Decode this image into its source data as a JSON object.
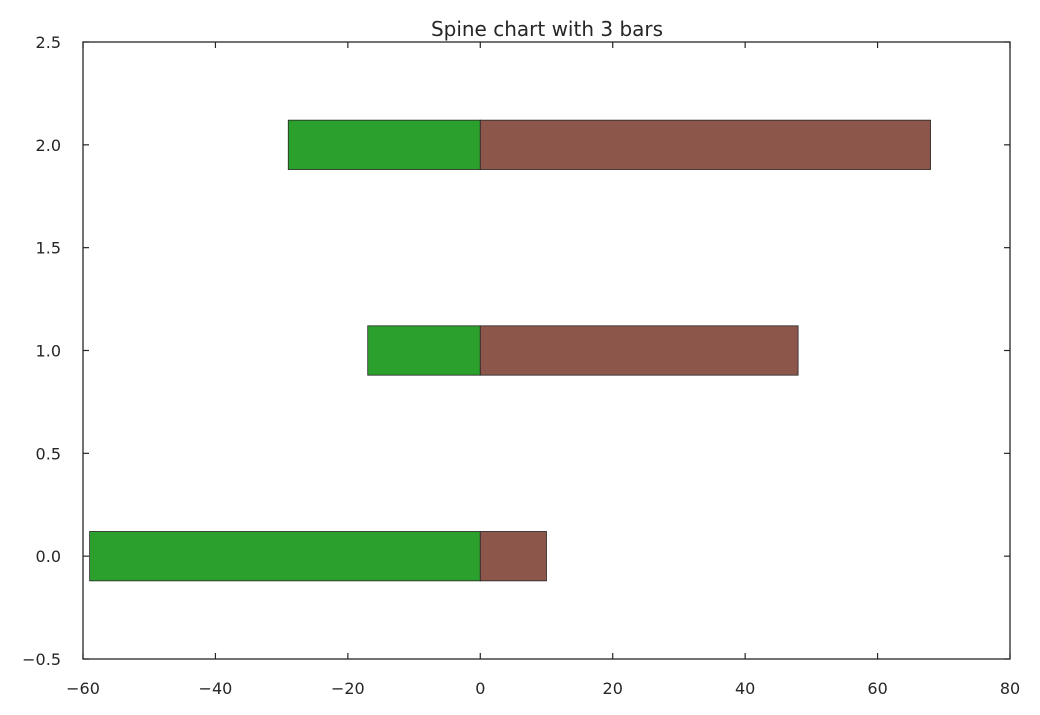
{
  "chart_data": {
    "type": "bar",
    "orientation": "horizontal",
    "title": "Spine chart with 3 bars",
    "xlabel": "",
    "ylabel": "",
    "xlim": [
      -60,
      80
    ],
    "ylim": [
      -0.5,
      2.5
    ],
    "xticks": [
      -60,
      -40,
      -20,
      0,
      20,
      40,
      60,
      80
    ],
    "yticks": [
      -0.5,
      0.0,
      0.5,
      1.0,
      1.5,
      2.0,
      2.5
    ],
    "xtick_labels": [
      "−60",
      "−40",
      "−20",
      "0",
      "20",
      "40",
      "60",
      "80"
    ],
    "ytick_labels": [
      "−0.5",
      "0.0",
      "0.5",
      "1.0",
      "1.5",
      "2.0",
      "2.5"
    ],
    "bar_height": 0.24,
    "grid": false,
    "legend": "none",
    "categories": [
      0,
      1,
      2
    ],
    "series": [
      {
        "values": [
          -59,
          -17,
          -29
        ],
        "color": "#2ca02c"
      },
      {
        "values": [
          10,
          48,
          68
        ],
        "color": "#8c564b"
      }
    ]
  }
}
